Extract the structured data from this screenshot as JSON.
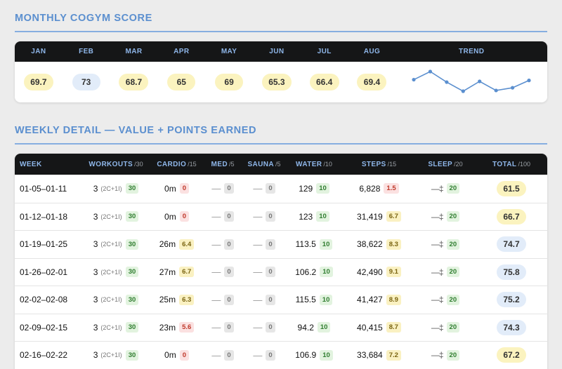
{
  "monthly": {
    "title": "MONTHLY COGYM SCORE",
    "months": [
      {
        "label": "JAN",
        "score": "69.7",
        "tone": "yellow"
      },
      {
        "label": "FEB",
        "score": "73",
        "tone": "blue"
      },
      {
        "label": "MAR",
        "score": "68.7",
        "tone": "yellow"
      },
      {
        "label": "APR",
        "score": "65",
        "tone": "yellow"
      },
      {
        "label": "MAY",
        "score": "69",
        "tone": "yellow"
      },
      {
        "label": "JUN",
        "score": "65.3",
        "tone": "yellow"
      },
      {
        "label": "JUL",
        "score": "66.4",
        "tone": "yellow"
      },
      {
        "label": "AUG",
        "score": "69.4",
        "tone": "yellow"
      }
    ],
    "trend_label": "TREND",
    "trend_values": [
      69.7,
      73,
      68.7,
      65,
      69,
      65.3,
      66.4,
      69.4
    ],
    "trend_color": "#5b8fcf"
  },
  "weekly": {
    "title": "WEEKLY DETAIL — VALUE + POINTS EARNED",
    "headers": [
      {
        "label": "WEEK",
        "max": ""
      },
      {
        "label": "WORKOUTS",
        "max": "/30"
      },
      {
        "label": "CARDIO",
        "max": "/15"
      },
      {
        "label": "MED",
        "max": "/5"
      },
      {
        "label": "SAUNA",
        "max": "/5"
      },
      {
        "label": "WATER",
        "max": "/10"
      },
      {
        "label": "STEPS",
        "max": "/15"
      },
      {
        "label": "SLEEP",
        "max": "/20"
      },
      {
        "label": "TOTAL",
        "max": "/100"
      }
    ],
    "rows": [
      {
        "week": "01-05–01-11",
        "workouts": "3",
        "workouts_sub": "(2C+1I)",
        "workouts_pts": "30",
        "cardio": "0m",
        "cardio_pts": "0",
        "cardio_tone": "br",
        "med": "—",
        "med_pts": "0",
        "sauna": "—",
        "sauna_pts": "0",
        "water": "129",
        "water_pts": "10",
        "steps": "6,828",
        "steps_pts": "1.5",
        "steps_tone": "br",
        "sleep": "—‡",
        "sleep_pts": "20",
        "total": "61.5",
        "total_tone": "yellow"
      },
      {
        "week": "01-12–01-18",
        "workouts": "3",
        "workouts_sub": "(2C+1I)",
        "workouts_pts": "30",
        "cardio": "0m",
        "cardio_pts": "0",
        "cardio_tone": "br",
        "med": "—",
        "med_pts": "0",
        "sauna": "—",
        "sauna_pts": "0",
        "water": "123",
        "water_pts": "10",
        "steps": "31,419",
        "steps_pts": "6.7",
        "steps_tone": "by",
        "sleep": "—‡",
        "sleep_pts": "20",
        "total": "66.7",
        "total_tone": "yellow"
      },
      {
        "week": "01-19–01-25",
        "workouts": "3",
        "workouts_sub": "(2C+1I)",
        "workouts_pts": "30",
        "cardio": "26m",
        "cardio_pts": "6.4",
        "cardio_tone": "by",
        "med": "—",
        "med_pts": "0",
        "sauna": "—",
        "sauna_pts": "0",
        "water": "113.5",
        "water_pts": "10",
        "steps": "38,622",
        "steps_pts": "8.3",
        "steps_tone": "by",
        "sleep": "—‡",
        "sleep_pts": "20",
        "total": "74.7",
        "total_tone": "blue"
      },
      {
        "week": "01-26–02-01",
        "workouts": "3",
        "workouts_sub": "(2C+1I)",
        "workouts_pts": "30",
        "cardio": "27m",
        "cardio_pts": "6.7",
        "cardio_tone": "by",
        "med": "—",
        "med_pts": "0",
        "sauna": "—",
        "sauna_pts": "0",
        "water": "106.2",
        "water_pts": "10",
        "steps": "42,490",
        "steps_pts": "9.1",
        "steps_tone": "by",
        "sleep": "—‡",
        "sleep_pts": "20",
        "total": "75.8",
        "total_tone": "blue"
      },
      {
        "week": "02-02–02-08",
        "workouts": "3",
        "workouts_sub": "(2C+1I)",
        "workouts_pts": "30",
        "cardio": "25m",
        "cardio_pts": "6.3",
        "cardio_tone": "by",
        "med": "—",
        "med_pts": "0",
        "sauna": "—",
        "sauna_pts": "0",
        "water": "115.5",
        "water_pts": "10",
        "steps": "41,427",
        "steps_pts": "8.9",
        "steps_tone": "by",
        "sleep": "—‡",
        "sleep_pts": "20",
        "total": "75.2",
        "total_tone": "blue"
      },
      {
        "week": "02-09–02-15",
        "workouts": "3",
        "workouts_sub": "(2C+1I)",
        "workouts_pts": "30",
        "cardio": "23m",
        "cardio_pts": "5.6",
        "cardio_tone": "br",
        "med": "—",
        "med_pts": "0",
        "sauna": "—",
        "sauna_pts": "0",
        "water": "94.2",
        "water_pts": "10",
        "steps": "40,415",
        "steps_pts": "8.7",
        "steps_tone": "by",
        "sleep": "—‡",
        "sleep_pts": "20",
        "total": "74.3",
        "total_tone": "blue"
      },
      {
        "week": "02-16–02-22",
        "workouts": "3",
        "workouts_sub": "(2C+1I)",
        "workouts_pts": "30",
        "cardio": "0m",
        "cardio_pts": "0",
        "cardio_tone": "br",
        "med": "—",
        "med_pts": "0",
        "sauna": "—",
        "sauna_pts": "0",
        "water": "106.9",
        "water_pts": "10",
        "steps": "33,684",
        "steps_pts": "7.2",
        "steps_tone": "by",
        "sleep": "—‡",
        "sleep_pts": "20",
        "total": "67.2",
        "total_tone": "yellow"
      }
    ]
  }
}
